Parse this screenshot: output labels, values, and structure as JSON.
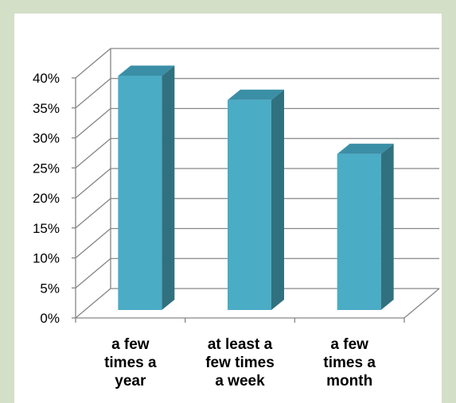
{
  "chart_data": {
    "type": "bar",
    "style": "3d-column",
    "categories": [
      [
        "a few",
        "times a",
        "year"
      ],
      [
        "at least a",
        "few times",
        "a week"
      ],
      [
        "a few",
        "times a",
        "month"
      ]
    ],
    "values": [
      39,
      35,
      26
    ],
    "unit": "%",
    "ylim": [
      0,
      40
    ],
    "y_ticks": [
      "0%",
      "5%",
      "10%",
      "15%",
      "20%",
      "25%",
      "30%",
      "35%",
      "40%"
    ],
    "grid": true,
    "legend": "none",
    "title": "",
    "xlabel": "",
    "ylabel": ""
  },
  "colors": {
    "page_background": "#d3dfc6",
    "bar_front": "#4bacc6",
    "bar_side": "#31717f",
    "bar_top": "#3a8fa6",
    "gridline": "#868686"
  }
}
